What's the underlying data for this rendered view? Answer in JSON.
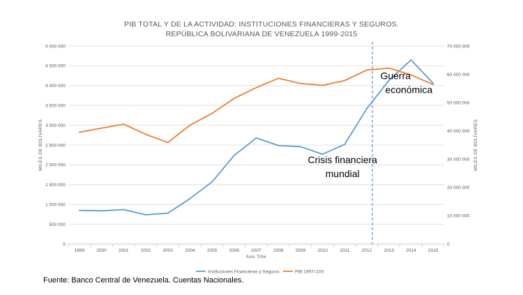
{
  "chart_data": {
    "type": "line",
    "title_lines": [
      "PIB TOTAL Y DE LA ACTIVIDAD: INSTITUCIONES FINANCIERAS Y SEGUROS.",
      "REPÚBLICA BOLIVARIANA DE VENEZUELA 1999-2015"
    ],
    "xlabel": "Axis Title",
    "ylabel_left": "MILES DE BOLÍVARES",
    "ylabel_right": "MILES DE BOLÍVARES",
    "categories": [
      "1999",
      "2000",
      "2001",
      "2002",
      "2003",
      "2004",
      "2005",
      "2006",
      "2007",
      "2008",
      "2009",
      "2010",
      "2011",
      "2012",
      "2013",
      "2014",
      "2015"
    ],
    "y_left": {
      "min": 0,
      "max": 5000000,
      "ticks": [
        0,
        500000,
        1000000,
        1500000,
        2000000,
        2500000,
        3000000,
        3500000,
        4000000,
        4500000,
        5000000
      ],
      "tick_labels": [
        "0",
        "500 000",
        "1 000 000",
        "1 500 000",
        "2 000 000",
        "2 500 000",
        "3 000 000",
        "3 500 000",
        "4 000 000",
        "4 500 000",
        "5 000 000"
      ]
    },
    "y_right": {
      "min": 0,
      "max": 70000000,
      "ticks": [
        0,
        10000000,
        20000000,
        30000000,
        40000000,
        50000000,
        60000000,
        70000000
      ],
      "tick_labels": [
        "0",
        "10 000 000",
        "20 000 000",
        "30 000 000",
        "40 000 000",
        "50 000 000",
        "60 000 000",
        "70 000 000"
      ]
    },
    "series": [
      {
        "name": "Instituciones Financieras y Seguros",
        "axis": "left",
        "color": "#5B9BD5",
        "values": [
          850000,
          840000,
          870000,
          740000,
          780000,
          1150000,
          1570000,
          2240000,
          2680000,
          2490000,
          2460000,
          2270000,
          2520000,
          3420000,
          4130000,
          4650000,
          4060000
        ]
      },
      {
        "name": "PIB 1997=100",
        "axis": "right",
        "color": "#ED7D31",
        "values": [
          39500000,
          41000000,
          42400000,
          38800000,
          35900000,
          42000000,
          46200000,
          51500000,
          55300000,
          58600000,
          56800000,
          56100000,
          57800000,
          61500000,
          62200000,
          59800000,
          56400000
        ]
      }
    ],
    "vertical_marker": {
      "x_position": 2012.25,
      "color": "#5B9BD5",
      "style": "dashed"
    },
    "annotations": [
      {
        "text": "Crisis financiera",
        "x": 2010.9,
        "y_left": 2040000
      },
      {
        "text": "mundial",
        "x": 2010.9,
        "y_left": 1690000
      },
      {
        "text": "Guerra",
        "x": 2013.3,
        "y_left": 4160000
      },
      {
        "text": "económica",
        "x": 2013.9,
        "y_left": 3810000
      }
    ],
    "grid": true,
    "legend_position": "bottom"
  },
  "source_note": "Fuente: Banco Central de Venezuela. Cuentas Nacionales."
}
